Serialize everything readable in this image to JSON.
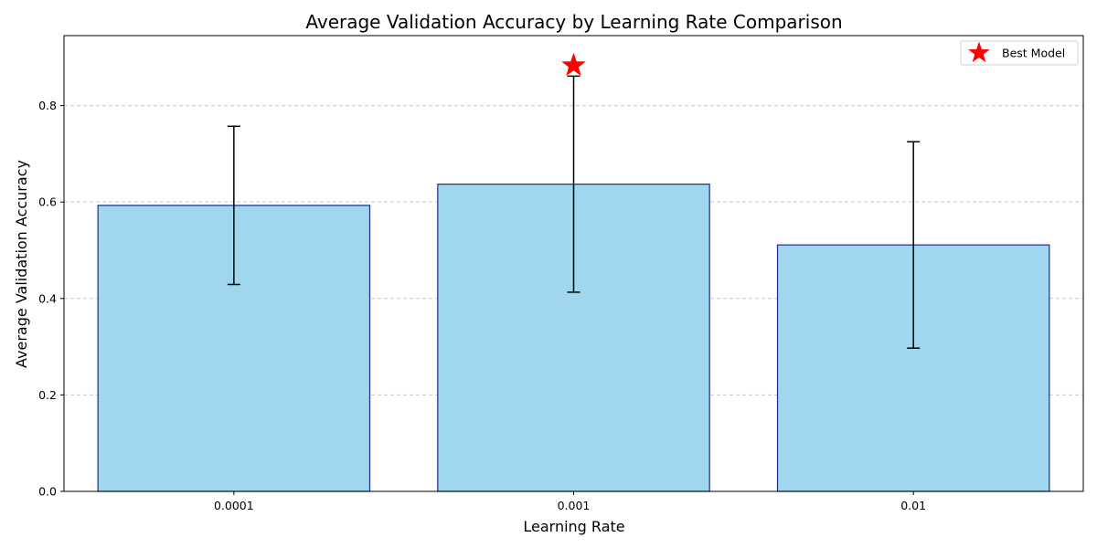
{
  "chart_data": {
    "type": "bar",
    "title": "Average Validation Accuracy by Learning Rate Comparison",
    "xlabel": "Learning Rate",
    "ylabel": "Average Validation Accuracy",
    "categories": [
      "0.0001",
      "0.001",
      "0.01"
    ],
    "values": [
      0.593,
      0.637,
      0.511
    ],
    "errors": [
      {
        "low": 0.429,
        "high": 0.757
      },
      {
        "low": 0.413,
        "high": 0.861
      },
      {
        "low": 0.297,
        "high": 0.725
      }
    ],
    "best_marker": {
      "category": "0.001",
      "value": 0.883,
      "label": "Best Model"
    },
    "ylim": [
      0,
      0.945
    ],
    "yticks": [
      0.0,
      0.2,
      0.4,
      0.6,
      0.8
    ],
    "ytick_labels": [
      "0.0",
      "0.2",
      "0.4",
      "0.6",
      "0.8"
    ],
    "grid": "y-dashed",
    "legend_position": "top-right",
    "colors": {
      "bar_fill": "#a0d6ee",
      "bar_edge": "#1e2a8c",
      "error_bar": "#000000",
      "grid": "#c8c8c8",
      "star": "#ff0000"
    }
  }
}
